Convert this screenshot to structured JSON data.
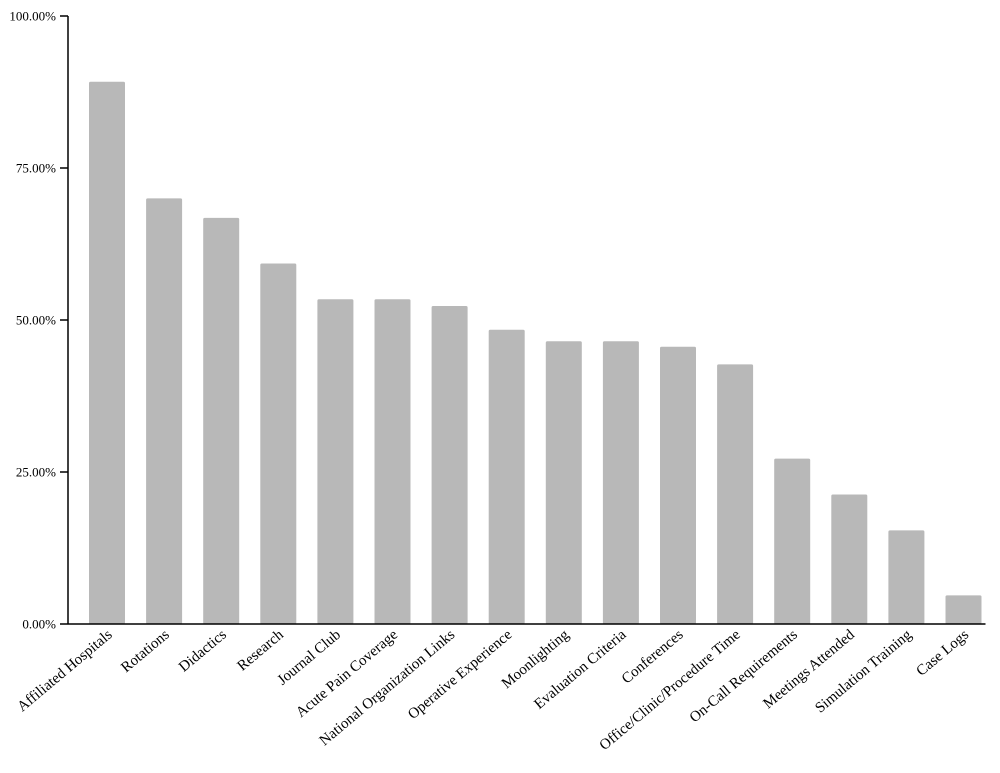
{
  "chart_data": {
    "type": "bar",
    "title": "",
    "xlabel": "",
    "ylabel": "",
    "ylim": [
      0,
      100
    ],
    "yticks": [
      0,
      25,
      50,
      75,
      100
    ],
    "ytick_labels": [
      "0.00%",
      "25.00%",
      "50.00%",
      "75.00%",
      "100.00%"
    ],
    "grid": false,
    "bar_color": "#b8b8b8",
    "categories": [
      "Affiliated Hospitals",
      "Rotations",
      "Didactics",
      "Research",
      "Journal Club",
      "Acute Pain Coverage",
      "National Organization Links",
      "Operative Experience",
      "Moonlighting",
      "Evaluation Criteria",
      "Conferences",
      "Office/Clinic/Procedure Time",
      "On-Call Requirements",
      "Meetings Attended",
      "Simulation Training",
      "Case Logs"
    ],
    "values": [
      89.2,
      70.0,
      66.8,
      59.3,
      53.4,
      53.4,
      52.3,
      48.4,
      46.5,
      46.5,
      45.6,
      42.7,
      27.2,
      21.3,
      15.4,
      4.7
    ]
  }
}
